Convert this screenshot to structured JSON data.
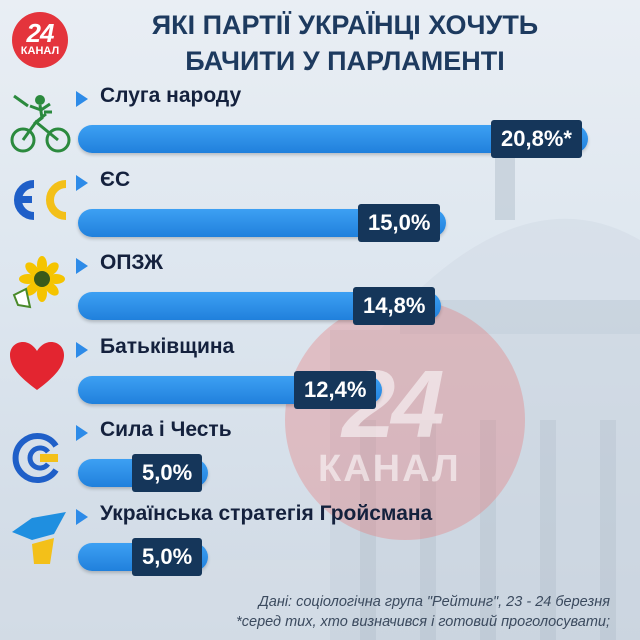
{
  "brand": {
    "number": "24",
    "name": "КАНАЛ"
  },
  "title_lines": [
    "ЯКІ ПАРТІЇ УКРАЇНЦІ ХОЧУТЬ",
    "БАЧИТИ У ПАРЛАМЕНТІ"
  ],
  "chart_data": {
    "type": "bar",
    "orientation": "horizontal",
    "title": "ЯКІ ПАРТІЇ УКРАЇНЦІ ХОЧУТЬ БАЧИТИ У ПАРЛАМЕНТІ",
    "categories": [
      "Слуга народу",
      "ЄС",
      "ОПЗЖ",
      "Батьківщина",
      "Сила і Честь",
      "Українська стратегія Гройсмана"
    ],
    "values": [
      20.8,
      15.0,
      14.8,
      12.4,
      5.0,
      5.0
    ],
    "value_labels": [
      "20,8%*",
      "15,0%",
      "14,8%",
      "12,4%",
      "5,0%",
      "5,0%"
    ],
    "unit": "%",
    "xlim": [
      0,
      20.8
    ],
    "grid": false,
    "colors": {
      "bar": "#2d8be8",
      "value_box": "#15365a",
      "title": "#1d3a5f"
    }
  },
  "icons": [
    "cyclist-icon",
    "es-logo-icon",
    "sunflower-icon",
    "heart-icon",
    "sila-i-chest-icon",
    "ukr-strategy-icon"
  ],
  "footnotes": [
    "Дані: соціологічна група \"Рейтинг\", 23 - 24 березня",
    "*серед тих, хто визначився і готовий проголосувати;"
  ]
}
